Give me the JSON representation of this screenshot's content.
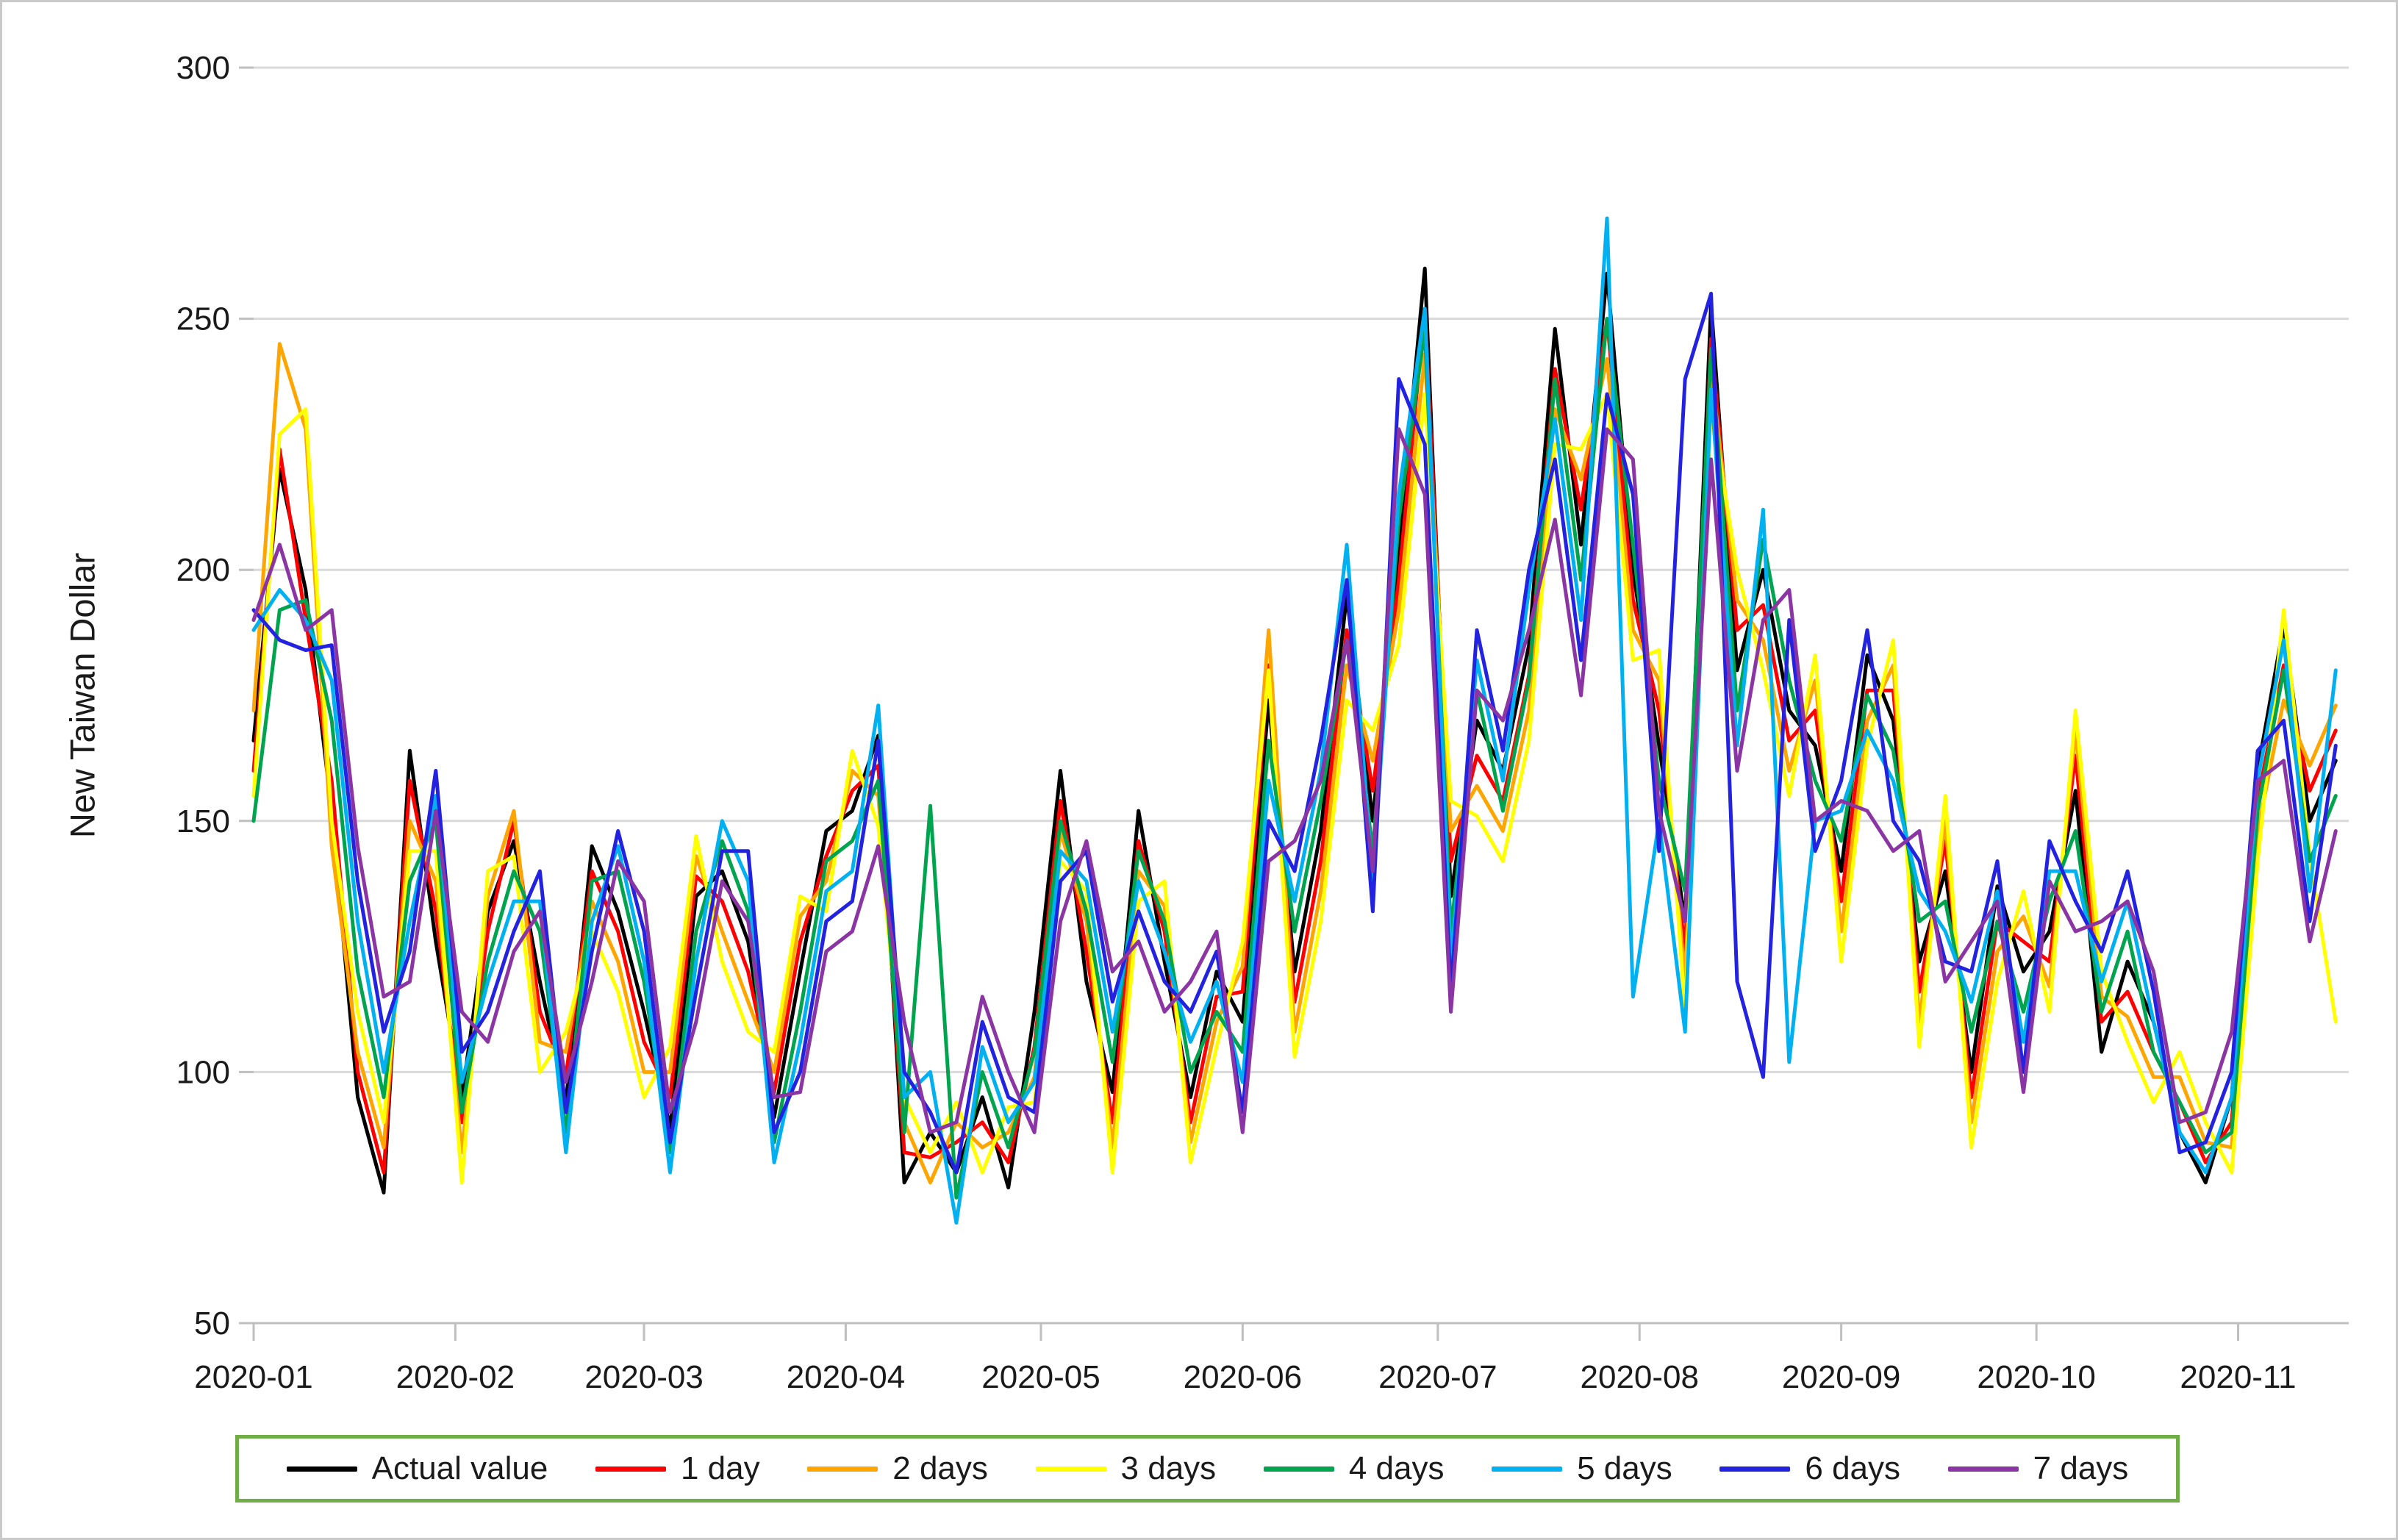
{
  "figure": {
    "background": "#FFFFFF",
    "frame_color": "#C9C9C9"
  },
  "chart_data": {
    "type": "line",
    "title": "",
    "xlabel": "",
    "ylabel": "New Taiwan Dollar",
    "ylim": [
      50,
      300
    ],
    "y_ticks": [
      300,
      250,
      200,
      150,
      100,
      50
    ],
    "x_tick_labels": [
      "2020-01",
      "2020-02",
      "2020-03",
      "2020-04",
      "2020-05",
      "2020-06",
      "2020-07",
      "2020-08",
      "2020-09",
      "2020-10",
      "2020-11"
    ],
    "x_tick_days": [
      0,
      31,
      60,
      91,
      121,
      152,
      182,
      213,
      244,
      274,
      305
    ],
    "x_day_range": [
      0,
      322
    ],
    "sample_interval_days": 4,
    "grid": "horizontal",
    "gridline_color": "#D9D9D9",
    "axis_color": "#BFBFBF",
    "tick_label_color": "#1A1A1A",
    "legend_position": "bottom",
    "legend_border_color": "#70AD47",
    "series": [
      {
        "name": "Actual value",
        "color": "#000000",
        "values": [
          166,
          220,
          196,
          152,
          95,
          76,
          164,
          126,
          95,
          132,
          146,
          118,
          94,
          145,
          132,
          112,
          89,
          135,
          140,
          126,
          91,
          120,
          148,
          152,
          167,
          78,
          88,
          80,
          95,
          77,
          112,
          160,
          118,
          96,
          152,
          122,
          95,
          120,
          110,
          174,
          120,
          148,
          195,
          150,
          205,
          260,
          135,
          170,
          160,
          185,
          248,
          205,
          259,
          200,
          165,
          130,
          253,
          180,
          200,
          172,
          165,
          140,
          183,
          170,
          122,
          140,
          100,
          137,
          120,
          128,
          156,
          104,
          122,
          110,
          88,
          78,
          95,
          160,
          189,
          150,
          162
        ]
      },
      {
        "name": "1 day",
        "color": "#FF0000",
        "values": [
          160,
          224,
          190,
          158,
          100,
          80,
          158,
          132,
          90,
          128,
          150,
          112,
          99,
          140,
          128,
          106,
          95,
          139,
          134,
          120,
          96,
          126,
          143,
          156,
          161,
          84,
          83,
          86,
          90,
          82,
          105,
          154,
          124,
          90,
          146,
          128,
          90,
          115,
          116,
          181,
          114,
          142,
          188,
          156,
          198,
          252,
          142,
          163,
          154,
          179,
          240,
          212,
          250,
          194,
          172,
          124,
          246,
          188,
          193,
          166,
          172,
          134,
          176,
          176,
          116,
          146,
          95,
          130,
          126,
          122,
          163,
          110,
          116,
          104,
          94,
          82,
          90,
          154,
          181,
          156,
          168
        ]
      },
      {
        "name": "2 days",
        "color": "#FFA500",
        "values": [
          172,
          245,
          228,
          145,
          104,
          85,
          150,
          138,
          84,
          135,
          152,
          106,
          104,
          134,
          122,
          100,
          100,
          143,
          128,
          114,
          100,
          131,
          138,
          160,
          155,
          90,
          78,
          90,
          85,
          88,
          99,
          148,
          130,
          85,
          140,
          133,
          86,
          110,
          121,
          188,
          108,
          136,
          181,
          162,
          192,
          243,
          148,
          157,
          148,
          172,
          232,
          218,
          242,
          188,
          178,
          118,
          240,
          194,
          186,
          160,
          178,
          128,
          170,
          181,
          110,
          150,
          90,
          124,
          131,
          117,
          168,
          115,
          111,
          99,
          99,
          86,
          85,
          148,
          174,
          161,
          173
        ]
      },
      {
        "name": "3 days",
        "color": "#FFFF00",
        "values": [
          155,
          227,
          232,
          150,
          112,
          90,
          144,
          144,
          78,
          140,
          143,
          100,
          108,
          128,
          116,
          95,
          105,
          147,
          122,
          108,
          104,
          135,
          132,
          164,
          149,
          95,
          84,
          94,
          80,
          93,
          94,
          142,
          136,
          80,
          134,
          138,
          82,
          105,
          126,
          180,
          103,
          130,
          174,
          168,
          185,
          235,
          154,
          151,
          142,
          166,
          225,
          224,
          235,
          182,
          184,
          112,
          233,
          200,
          180,
          155,
          183,
          122,
          165,
          186,
          105,
          155,
          85,
          118,
          136,
          112,
          172,
          120,
          106,
          94,
          104,
          90,
          80,
          142,
          192,
          143,
          110
        ]
      },
      {
        "name": "4 days",
        "color": "#00A44F",
        "values": [
          150,
          192,
          194,
          170,
          120,
          95,
          138,
          150,
          92,
          122,
          140,
          128,
          88,
          138,
          140,
          118,
          84,
          128,
          146,
          132,
          86,
          112,
          142,
          146,
          158,
          88,
          153,
          75,
          100,
          85,
          104,
          150,
          132,
          102,
          144,
          130,
          100,
          112,
          104,
          166,
          128,
          154,
          186,
          144,
          210,
          248,
          128,
          176,
          152,
          178,
          238,
          198,
          250,
          205,
          158,
          136,
          244,
          172,
          206,
          178,
          158,
          146,
          175,
          164,
          130,
          134,
          108,
          130,
          112,
          134,
          148,
          112,
          128,
          104,
          94,
          84,
          88,
          152,
          180,
          142,
          155
        ]
      },
      {
        "name": "5 days",
        "color": "#00B0F0",
        "values": [
          188,
          196,
          190,
          178,
          130,
          100,
          130,
          155,
          98,
          118,
          134,
          134,
          84,
          130,
          145,
          122,
          80,
          122,
          150,
          138,
          82,
          106,
          136,
          140,
          173,
          95,
          100,
          70,
          105,
          90,
          98,
          144,
          138,
          108,
          138,
          124,
          106,
          118,
          98,
          158,
          134,
          160,
          205,
          138,
          215,
          252,
          122,
          182,
          158,
          196,
          230,
          190,
          270,
          115,
          150,
          108,
          236,
          165,
          212,
          102,
          150,
          152,
          168,
          158,
          136,
          128,
          114,
          136,
          106,
          140,
          140,
          118,
          134,
          110,
          88,
          80,
          95,
          158,
          186,
          136,
          180
        ]
      },
      {
        "name": "6 days",
        "color": "#2222E0",
        "values": [
          192,
          186,
          184,
          185,
          138,
          108,
          124,
          160,
          104,
          112,
          128,
          140,
          92,
          124,
          148,
          128,
          86,
          116,
          144,
          144,
          88,
          100,
          130,
          134,
          166,
          100,
          92,
          80,
          110,
          95,
          92,
          138,
          144,
          114,
          132,
          118,
          112,
          124,
          92,
          150,
          140,
          166,
          198,
          132,
          238,
          225,
          116,
          188,
          164,
          200,
          222,
          182,
          235,
          215,
          144,
          238,
          255,
          118,
          99,
          190,
          144,
          158,
          188,
          150,
          142,
          122,
          120,
          142,
          100,
          146,
          134,
          124,
          140,
          116,
          84,
          86,
          100,
          164,
          170,
          130,
          165
        ]
      },
      {
        "name": "7 days",
        "color": "#8B35A5",
        "values": [
          190,
          205,
          188,
          192,
          145,
          115,
          118,
          152,
          112,
          106,
          124,
          132,
          98,
          118,
          142,
          134,
          92,
          110,
          138,
          130,
          95,
          96,
          124,
          128,
          145,
          110,
          88,
          90,
          115,
          100,
          88,
          130,
          146,
          120,
          126,
          112,
          118,
          128,
          88,
          142,
          146,
          158,
          186,
          140,
          228,
          215,
          112,
          176,
          170,
          188,
          210,
          175,
          228,
          222,
          152,
          130,
          222,
          160,
          190,
          196,
          150,
          154,
          152,
          144,
          148,
          118,
          126,
          134,
          96,
          138,
          128,
          130,
          134,
          120,
          90,
          92,
          108,
          158,
          162,
          126,
          148
        ]
      }
    ]
  }
}
